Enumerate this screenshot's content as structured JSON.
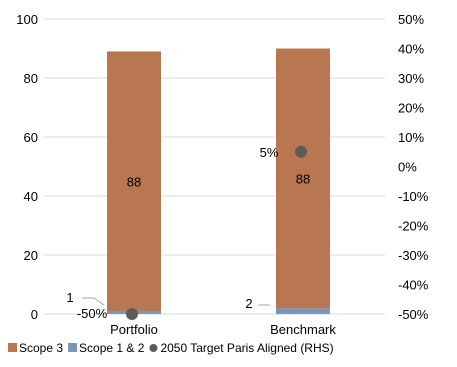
{
  "chart_data": {
    "type": "bar",
    "stacked": true,
    "categories": [
      "Portfolio",
      "Benchmark"
    ],
    "series": [
      {
        "name": "Scope 3",
        "values": [
          88,
          88
        ],
        "color": "#b87751",
        "axis": "left"
      },
      {
        "name": "Scope 1 & 2",
        "values": [
          1,
          2
        ],
        "color": "#7b96b5",
        "axis": "left"
      },
      {
        "name": "2050 Target Paris Aligned (RHS)",
        "values": [
          -50,
          5
        ],
        "color": "#5b5b5b",
        "axis": "right",
        "marker": "circle"
      }
    ],
    "bar_labels": {
      "Scope 3": [
        "88",
        "88"
      ],
      "Scope 1 & 2": [
        "1",
        "2"
      ],
      "2050 Target Paris Aligned (RHS)": [
        "-50%",
        "5%"
      ]
    },
    "y_left": {
      "min": 0,
      "max": 100,
      "ticks": [
        "0",
        "20",
        "40",
        "60",
        "80",
        "100"
      ]
    },
    "y_right": {
      "min": -50,
      "max": 50,
      "ticks": [
        "-50%",
        "-40%",
        "-30%",
        "-20%",
        "-10%",
        "0%",
        "10%",
        "20%",
        "30%",
        "40%",
        "50%"
      ]
    },
    "grid": true,
    "legend_position": "bottom"
  }
}
